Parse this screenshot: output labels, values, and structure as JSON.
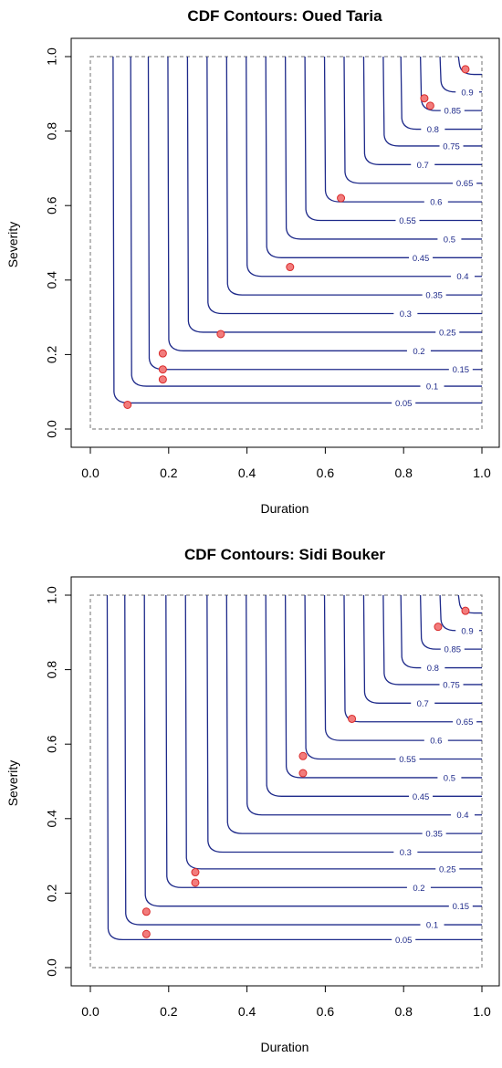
{
  "chart_data": [
    {
      "type": "contour",
      "title": "CDF Contours: Oued Taria",
      "xlabel": "Duration",
      "ylabel": "Severity",
      "xlim": [
        0,
        1
      ],
      "ylim": [
        0,
        1
      ],
      "x_ticks": [
        "0.0",
        "0.2",
        "0.4",
        "0.6",
        "0.8",
        "1.0"
      ],
      "y_ticks": [
        "0.0",
        "0.2",
        "0.4",
        "0.6",
        "0.8",
        "1.0"
      ],
      "contour_levels": [
        {
          "level": 0.05,
          "label": "0.05",
          "corner_x": 0.07,
          "corner_y": 0.07
        },
        {
          "level": 0.1,
          "label": "0.1",
          "corner_x": 0.115,
          "corner_y": 0.115
        },
        {
          "level": 0.15,
          "label": "0.15",
          "corner_x": 0.16,
          "corner_y": 0.16
        },
        {
          "level": 0.2,
          "label": "0.2",
          "corner_x": 0.21,
          "corner_y": 0.21
        },
        {
          "level": 0.25,
          "label": "0.25",
          "corner_x": 0.26,
          "corner_y": 0.26
        },
        {
          "level": 0.3,
          "label": "0.3",
          "corner_x": 0.31,
          "corner_y": 0.31
        },
        {
          "level": 0.35,
          "label": "0.35",
          "corner_x": 0.36,
          "corner_y": 0.36
        },
        {
          "level": 0.4,
          "label": "0.4",
          "corner_x": 0.41,
          "corner_y": 0.41
        },
        {
          "level": 0.45,
          "label": "0.45",
          "corner_x": 0.46,
          "corner_y": 0.46
        },
        {
          "level": 0.5,
          "label": "0.5",
          "corner_x": 0.51,
          "corner_y": 0.51
        },
        {
          "level": 0.55,
          "label": "0.55",
          "corner_x": 0.56,
          "corner_y": 0.56
        },
        {
          "level": 0.6,
          "label": "0.6",
          "corner_x": 0.61,
          "corner_y": 0.61
        },
        {
          "level": 0.65,
          "label": "0.65",
          "corner_x": 0.66,
          "corner_y": 0.66
        },
        {
          "level": 0.7,
          "label": "0.7",
          "corner_x": 0.71,
          "corner_y": 0.71
        },
        {
          "level": 0.75,
          "label": "0.75",
          "corner_x": 0.76,
          "corner_y": 0.76
        },
        {
          "level": 0.8,
          "label": "0.8",
          "corner_x": 0.805,
          "corner_y": 0.805
        },
        {
          "level": 0.85,
          "label": "0.85",
          "corner_x": 0.855,
          "corner_y": 0.855
        },
        {
          "level": 0.9,
          "label": "0.9",
          "corner_x": 0.905,
          "corner_y": 0.905
        },
        {
          "level": 0.95,
          "label": "",
          "corner_x": 0.952,
          "corner_y": 0.952
        }
      ],
      "points": [
        {
          "x": 0.095,
          "y": 0.065
        },
        {
          "x": 0.185,
          "y": 0.133
        },
        {
          "x": 0.185,
          "y": 0.16
        },
        {
          "x": 0.185,
          "y": 0.203
        },
        {
          "x": 0.333,
          "y": 0.255
        },
        {
          "x": 0.51,
          "y": 0.435
        },
        {
          "x": 0.64,
          "y": 0.62
        },
        {
          "x": 0.853,
          "y": 0.888
        },
        {
          "x": 0.868,
          "y": 0.868
        },
        {
          "x": 0.958,
          "y": 0.966
        }
      ],
      "colors": {
        "contour": "#1e2a8a",
        "point_fill": "#f27c7c",
        "point_stroke": "#d92b2b",
        "bounds": "#8a8a8a"
      }
    },
    {
      "type": "contour",
      "title": "CDF Contours: Sidi Bouker",
      "xlabel": "Duration",
      "ylabel": "Severity",
      "xlim": [
        0,
        1
      ],
      "ylim": [
        0,
        1
      ],
      "x_ticks": [
        "0.0",
        "0.2",
        "0.4",
        "0.6",
        "0.8",
        "1.0"
      ],
      "y_ticks": [
        "0.0",
        "0.2",
        "0.4",
        "0.6",
        "0.8",
        "1.0"
      ],
      "contour_levels": [
        {
          "level": 0.05,
          "label": "0.05",
          "corner_x": 0.055,
          "corner_y": 0.075
        },
        {
          "level": 0.1,
          "label": "0.1",
          "corner_x": 0.1,
          "corner_y": 0.115
        },
        {
          "level": 0.15,
          "label": "0.15",
          "corner_x": 0.15,
          "corner_y": 0.165
        },
        {
          "level": 0.2,
          "label": "0.2",
          "corner_x": 0.205,
          "corner_y": 0.215
        },
        {
          "level": 0.25,
          "label": "0.25",
          "corner_x": 0.255,
          "corner_y": 0.265
        },
        {
          "level": 0.3,
          "label": "0.3",
          "corner_x": 0.31,
          "corner_y": 0.31
        },
        {
          "level": 0.35,
          "label": "0.35",
          "corner_x": 0.36,
          "corner_y": 0.36
        },
        {
          "level": 0.4,
          "label": "0.4",
          "corner_x": 0.41,
          "corner_y": 0.41
        },
        {
          "level": 0.45,
          "label": "0.45",
          "corner_x": 0.46,
          "corner_y": 0.46
        },
        {
          "level": 0.5,
          "label": "0.5",
          "corner_x": 0.51,
          "corner_y": 0.51
        },
        {
          "level": 0.55,
          "label": "0.55",
          "corner_x": 0.56,
          "corner_y": 0.56
        },
        {
          "level": 0.6,
          "label": "0.6",
          "corner_x": 0.61,
          "corner_y": 0.61
        },
        {
          "level": 0.65,
          "label": "0.65",
          "corner_x": 0.66,
          "corner_y": 0.66
        },
        {
          "level": 0.7,
          "label": "0.7",
          "corner_x": 0.71,
          "corner_y": 0.71
        },
        {
          "level": 0.75,
          "label": "0.75",
          "corner_x": 0.76,
          "corner_y": 0.76
        },
        {
          "level": 0.8,
          "label": "0.8",
          "corner_x": 0.805,
          "corner_y": 0.805
        },
        {
          "level": 0.85,
          "label": "0.85",
          "corner_x": 0.855,
          "corner_y": 0.855
        },
        {
          "level": 0.9,
          "label": "0.9",
          "corner_x": 0.905,
          "corner_y": 0.905
        },
        {
          "level": 0.95,
          "label": "",
          "corner_x": 0.952,
          "corner_y": 0.952
        }
      ],
      "points": [
        {
          "x": 0.143,
          "y": 0.09
        },
        {
          "x": 0.143,
          "y": 0.15
        },
        {
          "x": 0.268,
          "y": 0.228
        },
        {
          "x": 0.268,
          "y": 0.256
        },
        {
          "x": 0.543,
          "y": 0.522
        },
        {
          "x": 0.543,
          "y": 0.568
        },
        {
          "x": 0.668,
          "y": 0.668
        },
        {
          "x": 0.888,
          "y": 0.915
        },
        {
          "x": 0.958,
          "y": 0.958
        }
      ],
      "colors": {
        "contour": "#1e2a8a",
        "point_fill": "#f27c7c",
        "point_stroke": "#d92b2b",
        "bounds": "#8a8a8a"
      }
    }
  ]
}
